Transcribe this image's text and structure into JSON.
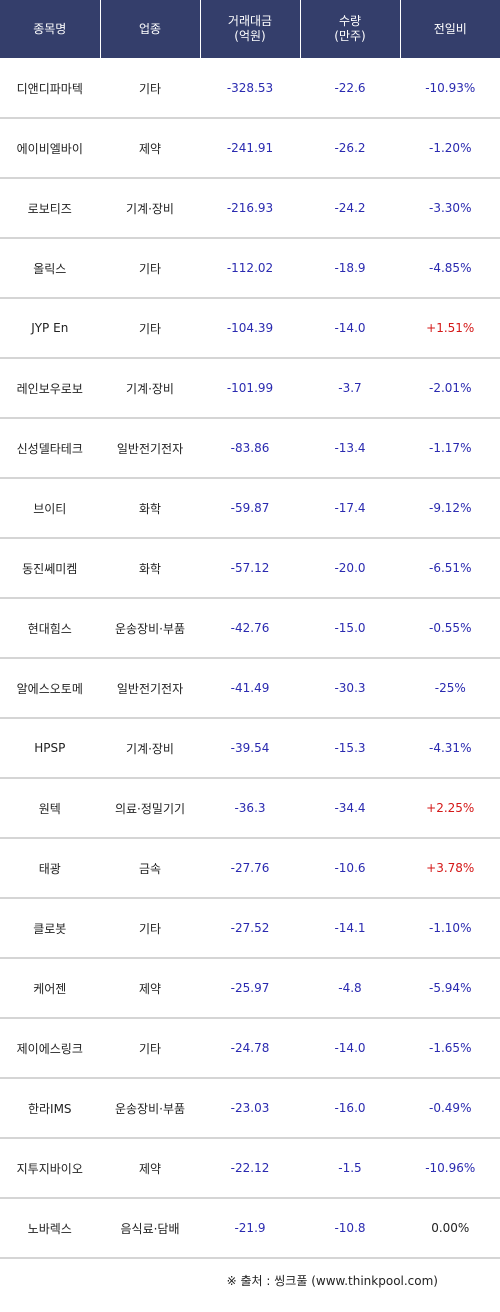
{
  "table": {
    "headers": [
      {
        "line1": "종목명",
        "line2": ""
      },
      {
        "line1": "업종",
        "line2": ""
      },
      {
        "line1": "거래대금",
        "line2": "(억원)"
      },
      {
        "line1": "수량",
        "line2": "(만주)"
      },
      {
        "line1": "전일비",
        "line2": ""
      }
    ],
    "rows": [
      [
        "디앤디파마텍",
        "기타",
        "-328.53",
        "-22.6",
        "-10.93%"
      ],
      [
        "에이비엘바이",
        "제약",
        "-241.91",
        "-26.2",
        "-1.20%"
      ],
      [
        "로보티즈",
        "기계·장비",
        "-216.93",
        "-24.2",
        "-3.30%"
      ],
      [
        "올릭스",
        "기타",
        "-112.02",
        "-18.9",
        "-4.85%"
      ],
      [
        "JYP En",
        "기타",
        "-104.39",
        "-14.0",
        "+1.51%"
      ],
      [
        "레인보우로보",
        "기계·장비",
        "-101.99",
        "-3.7",
        "-2.01%"
      ],
      [
        "신성델타테크",
        "일반전기전자",
        "-83.86",
        "-13.4",
        "-1.17%"
      ],
      [
        "브이티",
        "화학",
        "-59.87",
        "-17.4",
        "-9.12%"
      ],
      [
        "동진쎄미켐",
        "화학",
        "-57.12",
        "-20.0",
        "-6.51%"
      ],
      [
        "현대힘스",
        "운송장비·부품",
        "-42.76",
        "-15.0",
        "-0.55%"
      ],
      [
        "알에스오토메",
        "일반전기전자",
        "-41.49",
        "-30.3",
        "-25%"
      ],
      [
        "HPSP",
        "기계·장비",
        "-39.54",
        "-15.3",
        "-4.31%"
      ],
      [
        "원텍",
        "의료·정밀기기",
        "-36.3",
        "-34.4",
        "+2.25%"
      ],
      [
        "태광",
        "금속",
        "-27.76",
        "-10.6",
        "+3.78%"
      ],
      [
        "클로봇",
        "기타",
        "-27.52",
        "-14.1",
        "-1.10%"
      ],
      [
        "케어젠",
        "제약",
        "-25.97",
        "-4.8",
        "-5.94%"
      ],
      [
        "제이에스링크",
        "기타",
        "-24.78",
        "-14.0",
        "-1.65%"
      ],
      [
        "한라IMS",
        "운송장비·부품",
        "-23.03",
        "-16.0",
        "-0.49%"
      ],
      [
        "지투지바이오",
        "제약",
        "-22.12",
        "-1.5",
        "-10.96%"
      ],
      [
        "노바렉스",
        "음식료·담배",
        "-21.9",
        "-10.8",
        "0.00%"
      ]
    ]
  },
  "footer": {
    "source": "※ 출처 : 씽크풀 (www.thinkpool.com)"
  },
  "colors": {
    "header_bg": "#343e6b",
    "negative": "#2a2ab0",
    "positive": "#d41818",
    "row_divider": "#d5d5d5"
  }
}
